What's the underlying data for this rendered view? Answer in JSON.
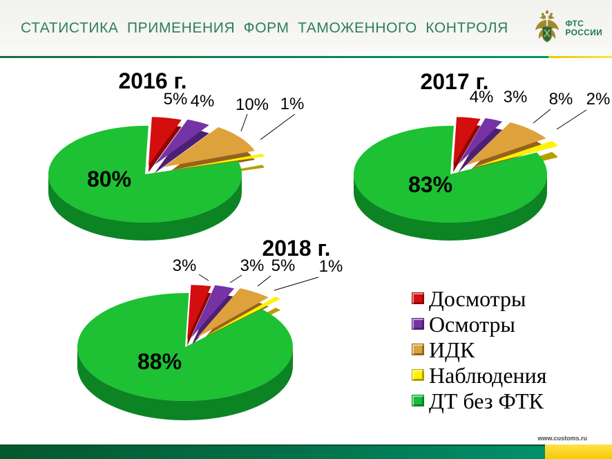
{
  "header": {
    "title": "СТАТИСТИКА ПРИМЕНЕНИЯ ФОРМ ТАМОЖЕННОГО КОНТРОЛЯ",
    "logo_line1": "ФТС",
    "logo_line2": "РОССИИ"
  },
  "footer": {
    "url": "www.customs.ru"
  },
  "legend": {
    "items": [
      {
        "label": "Досмотры",
        "color": "#d40d0d"
      },
      {
        "label": "Осмотры",
        "color": "#7533a6"
      },
      {
        "label": "ИДК",
        "color": "#dda23b"
      },
      {
        "label": "Наблюдения",
        "color": "#fff200"
      },
      {
        "label": "ДТ без ФТК",
        "color": "#14be3f"
      }
    ]
  },
  "colors": {
    "slice_top": [
      "#d40d0d",
      "#7533a6",
      "#dda23b",
      "#fff200",
      "#1dc133"
    ],
    "slice_side": [
      "#8f0505",
      "#4d1f73",
      "#94621c",
      "#b5a000",
      "#0c8424"
    ],
    "title_green": "#2e7d5b"
  },
  "chart_data": [
    {
      "type": "pie",
      "title": "2016 г.",
      "categories": [
        "Досмотры",
        "Осмотры",
        "ИДК",
        "Наблюдения",
        "ДТ без ФТК"
      ],
      "values": [
        5,
        4,
        10,
        1,
        80
      ],
      "labels": [
        "5%",
        "4%",
        "10%",
        "1%",
        "80%"
      ],
      "legend_position": "none"
    },
    {
      "type": "pie",
      "title": "2017 г.",
      "categories": [
        "Досмотры",
        "Осмотры",
        "ИДК",
        "Наблюдения",
        "ДТ без ФТК"
      ],
      "values": [
        4,
        3,
        8,
        2,
        83
      ],
      "labels": [
        "4%",
        "3%",
        "8%",
        "2%",
        "83%"
      ],
      "legend_position": "none"
    },
    {
      "type": "pie",
      "title": "2018 г.",
      "categories": [
        "Досмотры",
        "Осмотры",
        "ИДК",
        "Наблюдения",
        "ДТ без ФТК"
      ],
      "values": [
        3,
        3,
        5,
        1,
        88
      ],
      "labels": [
        "3%",
        "3%",
        "5%",
        "1%",
        "88%"
      ],
      "legend_position": "right-bottom"
    }
  ]
}
